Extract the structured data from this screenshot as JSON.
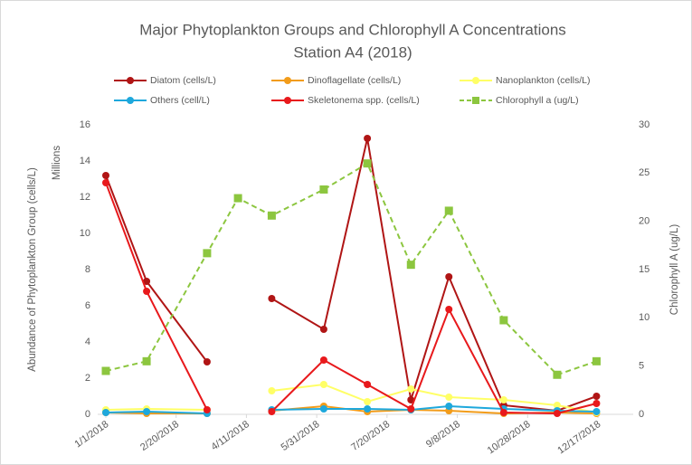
{
  "chart_data": {
    "type": "line",
    "title": "Major Phytoplankton Groups and Chlorophyll A Concentrations",
    "subtitle": "Station A4 (2018)",
    "ylabel": "Abundance of Phytoplankton Group (cells/L)",
    "y_unit_label": "Millions",
    "y2label": "Chlorophyll A (ug/L)",
    "x": [
      "1/1/2018",
      "1/30/2018",
      "3/14/2018",
      "4/5/2018",
      "4/29/2018",
      "6/5/2018",
      "7/6/2018",
      "8/6/2018",
      "9/2/2018",
      "10/11/2018",
      "11/18/2018",
      "12/16/2018"
    ],
    "xlim": [
      "1/1/2018",
      "12/17/2018"
    ],
    "xticks": [
      "1/1/2018",
      "2/20/2018",
      "4/11/2018",
      "5/31/2018",
      "7/20/2018",
      "9/8/2018",
      "10/28/2018",
      "12/17/2018"
    ],
    "ylim": [
      0,
      16
    ],
    "yticks": [
      0,
      2,
      4,
      6,
      8,
      10,
      12,
      14,
      16
    ],
    "y2lim": [
      0,
      30
    ],
    "y2ticks": [
      0,
      5,
      10,
      15,
      20,
      25,
      30
    ],
    "series": [
      {
        "name": "Diatom (cells/L)",
        "color": "#b01515",
        "marker": "circle",
        "dash": false,
        "values": [
          13.2,
          7.35,
          2.9,
          null,
          6.4,
          4.7,
          15.25,
          0.8,
          7.6,
          0.5,
          0.2,
          1.0
        ]
      },
      {
        "name": "Dinoflagellate (cells/L)",
        "color": "#f29c1a",
        "marker": "circle",
        "dash": false,
        "values": [
          0.1,
          0.05,
          0.05,
          null,
          0.2,
          0.45,
          0.15,
          0.25,
          0.2,
          0.05,
          0.1,
          0.05
        ]
      },
      {
        "name": "Nanoplankton (cells/L)",
        "color": "#ffff66",
        "marker": "circle",
        "dash": false,
        "values": [
          0.25,
          0.3,
          0.25,
          null,
          1.3,
          1.65,
          0.7,
          1.4,
          0.95,
          0.8,
          0.5,
          0.1
        ]
      },
      {
        "name": "Others (cell/L)",
        "color": "#1ea8dc",
        "marker": "circle",
        "dash": false,
        "values": [
          0.1,
          0.15,
          0.05,
          null,
          0.25,
          0.3,
          0.3,
          0.25,
          0.45,
          0.3,
          0.2,
          0.15
        ]
      },
      {
        "name": "Skeletonema spp. (cells/L)",
        "color": "#e8191c",
        "marker": "circle",
        "dash": false,
        "values": [
          12.8,
          6.8,
          0.25,
          null,
          0.15,
          3.0,
          1.65,
          0.3,
          5.8,
          0.1,
          0.05,
          0.6
        ]
      },
      {
        "name": "Chlorophyll a (ug/L)",
        "color": "#8cc63f",
        "marker": "square",
        "dash": true,
        "axis": "y2",
        "values": [
          4.5,
          5.5,
          16.7,
          22.4,
          20.6,
          23.3,
          26.0,
          15.5,
          21.1,
          9.75,
          4.1,
          5.5
        ]
      }
    ]
  }
}
